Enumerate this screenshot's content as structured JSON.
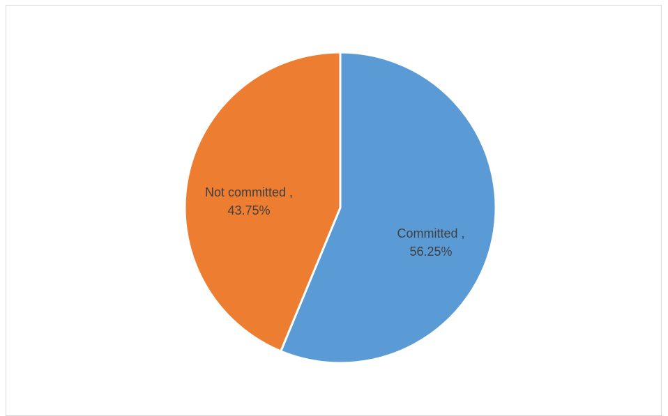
{
  "chart_data": {
    "type": "pie",
    "title": "",
    "slices": [
      {
        "label": "Committed",
        "value": 56.25,
        "label_lines": [
          "Committed ,",
          "56.25%"
        ],
        "color": "#5b9bd5"
      },
      {
        "label": "Not committed",
        "value": 43.75,
        "label_lines": [
          "Not committed ,",
          "43.75%"
        ],
        "color": "#ed7d31"
      }
    ],
    "start_angle": "12 o'clock",
    "direction": "clockwise",
    "data_labels": true,
    "legend": "none"
  }
}
